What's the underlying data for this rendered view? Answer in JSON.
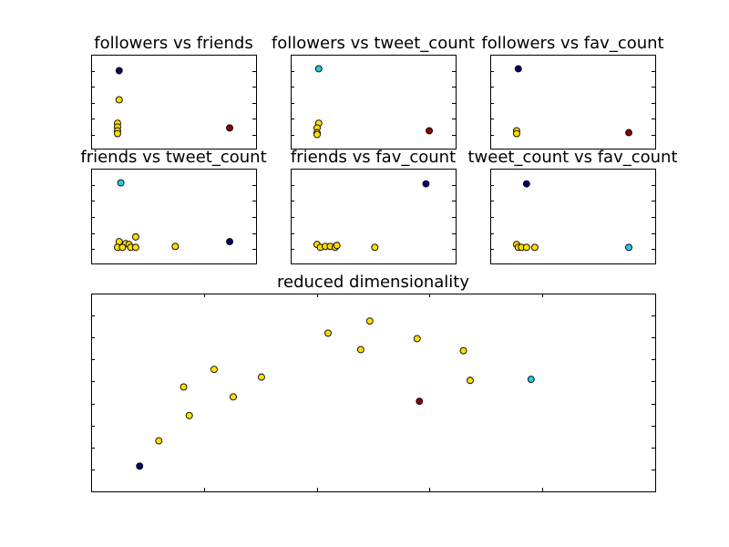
{
  "colors": {
    "dark_navy": "#000066",
    "cyan": "#22ccdd",
    "yellow": "#ffdd00",
    "dark_red": "#880000",
    "axes_edge": "#000000",
    "background": "#ffffff"
  },
  "chart_data": [
    {
      "type": "scatter",
      "title": "followers vs friends",
      "xlabel": "",
      "ylabel": "",
      "grid": false,
      "xlim": [
        0,
        1
      ],
      "ylim": [
        0,
        1
      ],
      "points": [
        {
          "x": 0.17,
          "y": 0.83,
          "color": "dark_navy"
        },
        {
          "x": 0.17,
          "y": 0.52,
          "color": "yellow"
        },
        {
          "x": 0.16,
          "y": 0.27,
          "color": "yellow"
        },
        {
          "x": 0.16,
          "y": 0.23,
          "color": "yellow"
        },
        {
          "x": 0.16,
          "y": 0.19,
          "color": "yellow"
        },
        {
          "x": 0.16,
          "y": 0.16,
          "color": "yellow"
        },
        {
          "x": 0.84,
          "y": 0.22,
          "color": "dark_red"
        }
      ]
    },
    {
      "type": "scatter",
      "title": "followers vs tweet_count",
      "xlabel": "",
      "ylabel": "",
      "grid": false,
      "xlim": [
        0,
        1
      ],
      "ylim": [
        0,
        1
      ],
      "points": [
        {
          "x": 0.17,
          "y": 0.85,
          "color": "cyan"
        },
        {
          "x": 0.17,
          "y": 0.27,
          "color": "yellow"
        },
        {
          "x": 0.16,
          "y": 0.22,
          "color": "yellow"
        },
        {
          "x": 0.16,
          "y": 0.17,
          "color": "yellow"
        },
        {
          "x": 0.16,
          "y": 0.15,
          "color": "yellow"
        },
        {
          "x": 0.84,
          "y": 0.19,
          "color": "dark_red"
        }
      ]
    },
    {
      "type": "scatter",
      "title": "followers vs fav_count",
      "xlabel": "",
      "ylabel": "",
      "grid": false,
      "xlim": [
        0,
        1
      ],
      "ylim": [
        0,
        1
      ],
      "points": [
        {
          "x": 0.17,
          "y": 0.85,
          "color": "dark_navy"
        },
        {
          "x": 0.16,
          "y": 0.19,
          "color": "yellow"
        },
        {
          "x": 0.16,
          "y": 0.16,
          "color": "yellow"
        },
        {
          "x": 0.84,
          "y": 0.17,
          "color": "dark_red"
        }
      ]
    },
    {
      "type": "scatter",
      "title": "friends vs tweet_count",
      "xlabel": "",
      "ylabel": "",
      "grid": false,
      "xlim": [
        0,
        1
      ],
      "ylim": [
        0,
        1
      ],
      "points": [
        {
          "x": 0.18,
          "y": 0.85,
          "color": "cyan"
        },
        {
          "x": 0.84,
          "y": 0.23,
          "color": "dark_navy"
        },
        {
          "x": 0.17,
          "y": 0.23,
          "color": "yellow"
        },
        {
          "x": 0.27,
          "y": 0.28,
          "color": "yellow"
        },
        {
          "x": 0.21,
          "y": 0.21,
          "color": "yellow"
        },
        {
          "x": 0.23,
          "y": 0.2,
          "color": "yellow"
        },
        {
          "x": 0.16,
          "y": 0.17,
          "color": "yellow"
        },
        {
          "x": 0.19,
          "y": 0.17,
          "color": "yellow"
        },
        {
          "x": 0.24,
          "y": 0.17,
          "color": "yellow"
        },
        {
          "x": 0.27,
          "y": 0.17,
          "color": "yellow"
        },
        {
          "x": 0.51,
          "y": 0.18,
          "color": "yellow"
        }
      ]
    },
    {
      "type": "scatter",
      "title": "friends vs fav_count",
      "xlabel": "",
      "ylabel": "",
      "grid": false,
      "xlim": [
        0,
        1
      ],
      "ylim": [
        0,
        1
      ],
      "points": [
        {
          "x": 0.82,
          "y": 0.84,
          "color": "dark_navy"
        },
        {
          "x": 0.16,
          "y": 0.2,
          "color": "yellow"
        },
        {
          "x": 0.18,
          "y": 0.17,
          "color": "yellow"
        },
        {
          "x": 0.21,
          "y": 0.18,
          "color": "yellow"
        },
        {
          "x": 0.24,
          "y": 0.18,
          "color": "yellow"
        },
        {
          "x": 0.27,
          "y": 0.17,
          "color": "yellow"
        },
        {
          "x": 0.28,
          "y": 0.19,
          "color": "yellow"
        },
        {
          "x": 0.51,
          "y": 0.17,
          "color": "yellow"
        }
      ]
    },
    {
      "type": "scatter",
      "title": "tweet_count vs fav_count",
      "xlabel": "",
      "ylabel": "",
      "grid": false,
      "xlim": [
        0,
        1
      ],
      "ylim": [
        0,
        1
      ],
      "points": [
        {
          "x": 0.22,
          "y": 0.84,
          "color": "dark_navy"
        },
        {
          "x": 0.84,
          "y": 0.17,
          "color": "cyan"
        },
        {
          "x": 0.16,
          "y": 0.2,
          "color": "yellow"
        },
        {
          "x": 0.17,
          "y": 0.17,
          "color": "yellow"
        },
        {
          "x": 0.19,
          "y": 0.17,
          "color": "yellow"
        },
        {
          "x": 0.22,
          "y": 0.17,
          "color": "yellow"
        },
        {
          "x": 0.27,
          "y": 0.17,
          "color": "yellow"
        }
      ]
    },
    {
      "type": "scatter",
      "title": "reduced dimensionality",
      "xlabel": "",
      "ylabel": "",
      "grid": false,
      "xlim": [
        0,
        5
      ],
      "ylim": [
        0,
        9
      ],
      "points": [
        {
          "x": 0.43,
          "y": 1.15,
          "color": "dark_navy"
        },
        {
          "x": 0.6,
          "y": 2.3,
          "color": "yellow"
        },
        {
          "x": 0.82,
          "y": 4.75,
          "color": "yellow"
        },
        {
          "x": 0.87,
          "y": 3.45,
          "color": "yellow"
        },
        {
          "x": 1.09,
          "y": 5.55,
          "color": "yellow"
        },
        {
          "x": 1.26,
          "y": 4.3,
          "color": "yellow"
        },
        {
          "x": 1.51,
          "y": 5.2,
          "color": "yellow"
        },
        {
          "x": 2.1,
          "y": 7.2,
          "color": "yellow"
        },
        {
          "x": 2.39,
          "y": 6.45,
          "color": "yellow"
        },
        {
          "x": 2.47,
          "y": 7.75,
          "color": "yellow"
        },
        {
          "x": 2.89,
          "y": 6.95,
          "color": "yellow"
        },
        {
          "x": 2.91,
          "y": 4.1,
          "color": "dark_red"
        },
        {
          "x": 3.3,
          "y": 6.4,
          "color": "yellow"
        },
        {
          "x": 3.36,
          "y": 5.05,
          "color": "yellow"
        },
        {
          "x": 3.9,
          "y": 5.1,
          "color": "cyan"
        }
      ]
    }
  ]
}
